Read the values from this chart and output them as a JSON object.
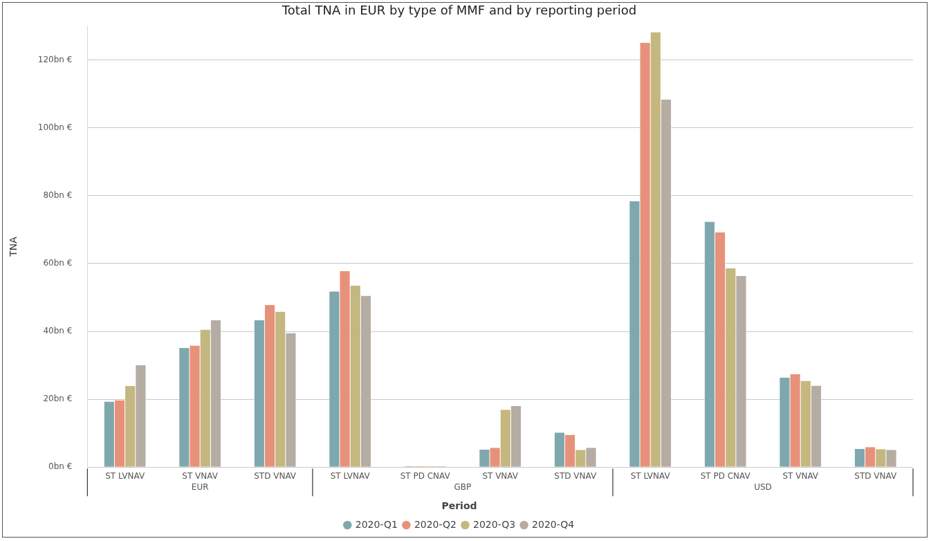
{
  "chart_data": {
    "type": "bar",
    "title": "Total TNA in EUR by type of MMF and by reporting period",
    "ylabel": "TNA",
    "legend_title": "Period",
    "categories": [
      "ST LVNAV",
      "ST VNAV",
      "STD VNAV",
      "ST LVNAV",
      "ST PD CNAV",
      "ST VNAV",
      "STD VNAV",
      "ST LVNAV",
      "ST PD CNAV",
      "ST VNAV",
      "STD VNAV"
    ],
    "series": [
      {
        "name": "2020-Q1",
        "color": "#7fa8ae",
        "values": [
          19.3,
          35.1,
          43.3,
          51.8,
          0.3,
          5.2,
          10.2,
          78.4,
          72.3,
          26.4,
          5.4
        ]
      },
      {
        "name": "2020-Q2",
        "color": "#e8917a",
        "values": [
          19.7,
          35.8,
          47.8,
          57.8,
          0.3,
          5.7,
          9.5,
          125.1,
          69.2,
          27.4,
          5.9
        ]
      },
      {
        "name": "2020-Q3",
        "color": "#c4b77f",
        "values": [
          23.9,
          40.5,
          45.8,
          53.5,
          0.3,
          16.9,
          5.1,
          128.2,
          58.6,
          25.4,
          5.3
        ]
      },
      {
        "name": "2020-Q4",
        "color": "#b5aca3",
        "values": [
          30.0,
          43.3,
          39.5,
          50.5,
          0.3,
          18.0,
          5.7,
          108.3,
          56.3,
          24.0,
          5.1
        ]
      }
    ],
    "annotations": [
      "EUR",
      "GBP",
      "USD"
    ],
    "ylim": [
      0,
      130
    ],
    "yticks": [
      {
        "value": 0,
        "label": "0bn €"
      },
      {
        "value": 20,
        "label": "20bn €"
      },
      {
        "value": 40,
        "label": "40bn €"
      },
      {
        "value": 60,
        "label": "60bn €"
      },
      {
        "value": 80,
        "label": "80bn €"
      },
      {
        "value": 100,
        "label": "100bn €"
      },
      {
        "value": 120,
        "label": "120bn €"
      }
    ],
    "grid": "y",
    "legend": "bottom"
  }
}
